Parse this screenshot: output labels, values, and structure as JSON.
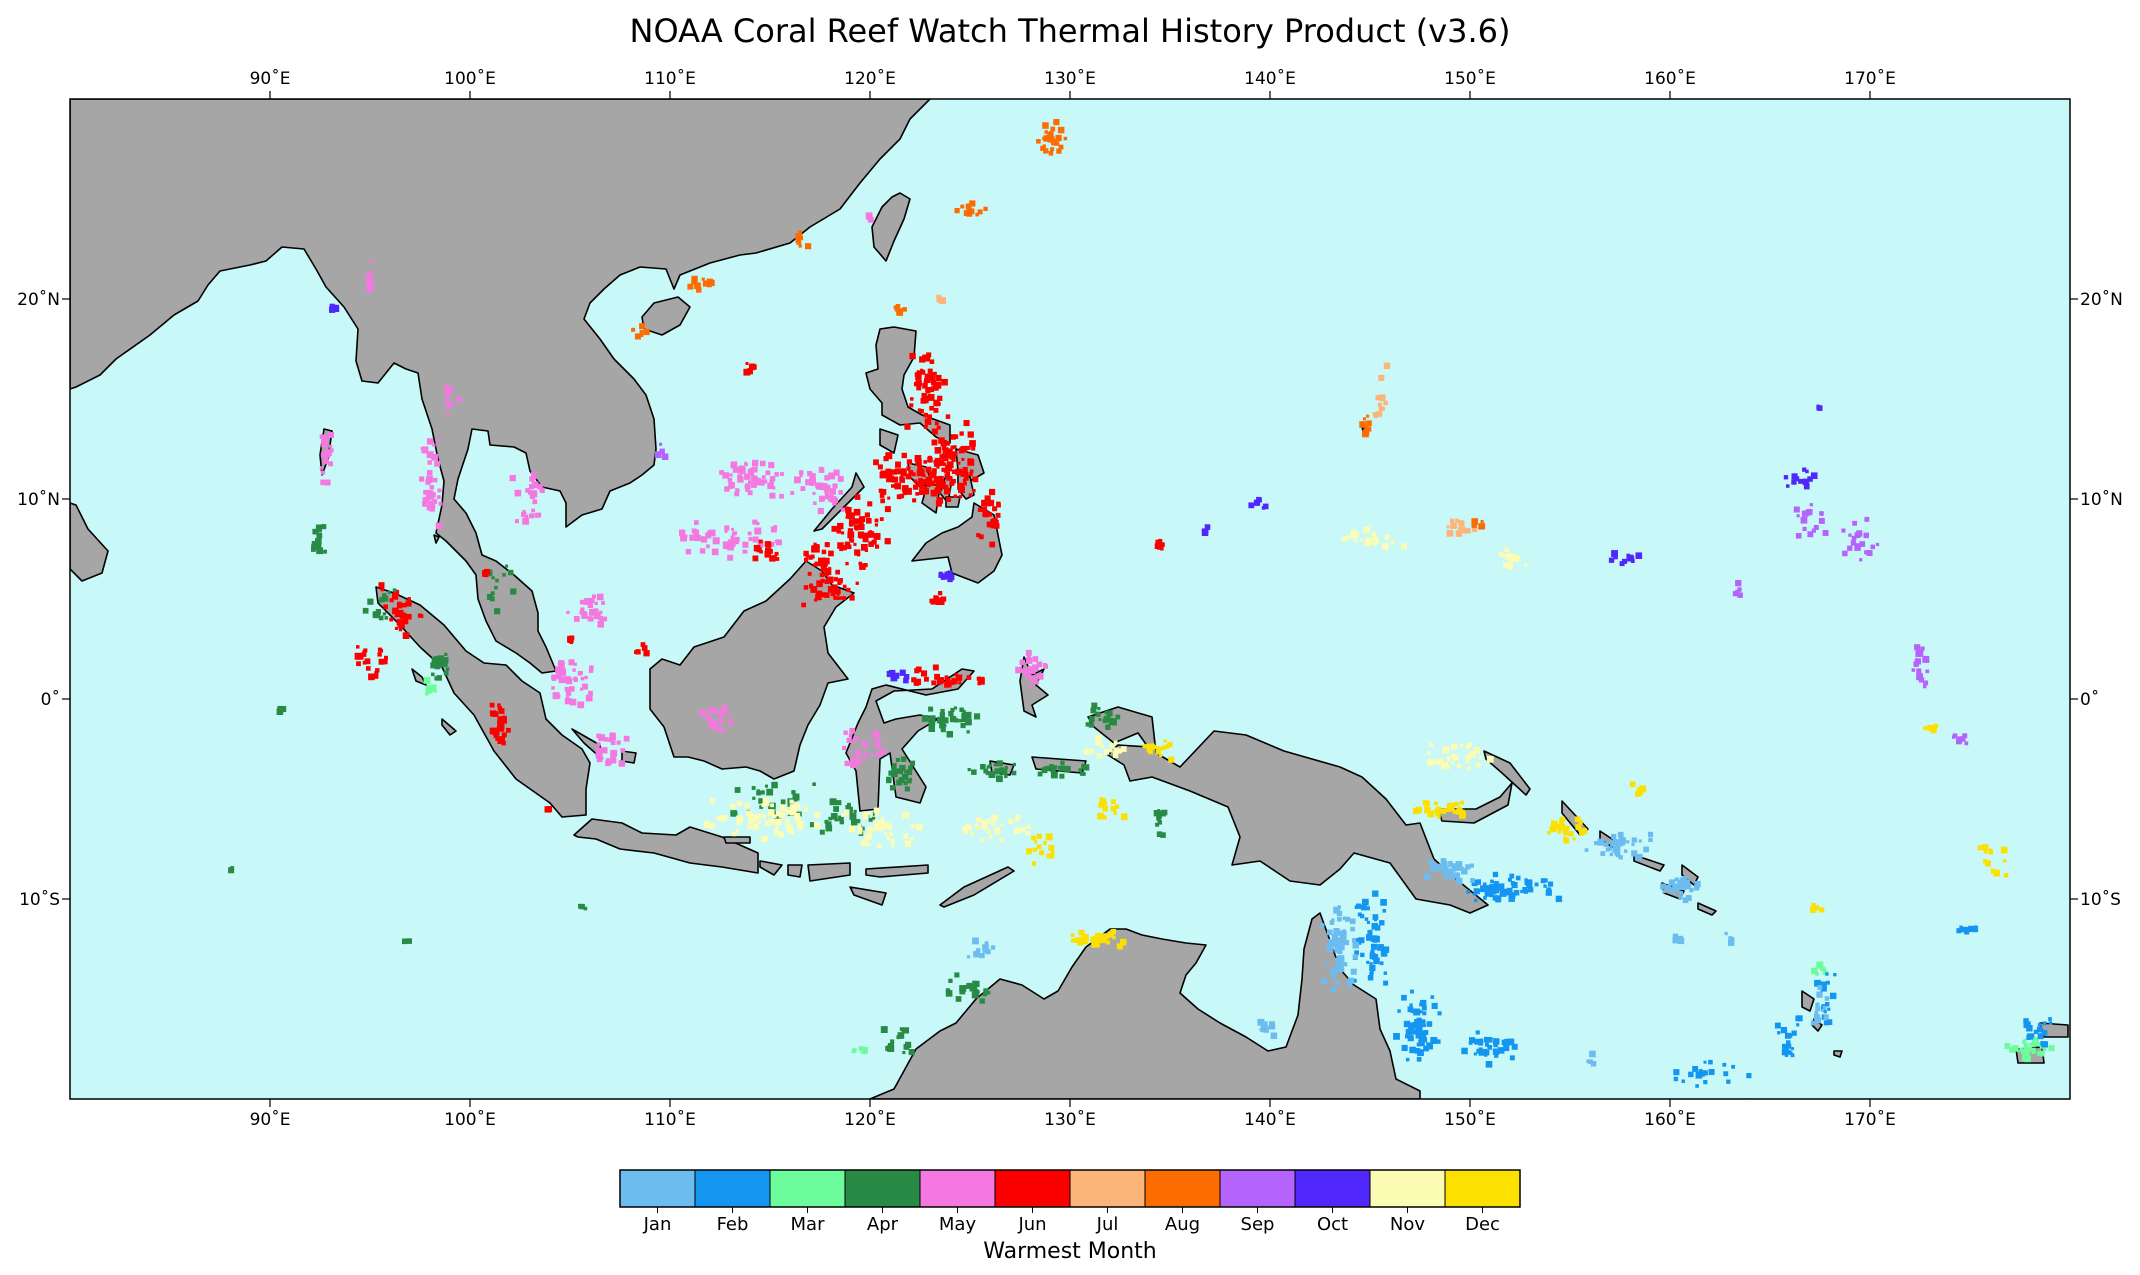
{
  "title": "NOAA Coral Reef Watch Thermal History Product (v3.6)",
  "map": {
    "extent": {
      "lon": [
        80,
        180
      ],
      "lat": [
        -20,
        30
      ]
    },
    "ocean_color": "#c8f8f8",
    "land_color": "#a6a6a6",
    "coast_color": "#000000"
  },
  "axes": {
    "lon_ticks": [
      {
        "value": 90,
        "label": "90˚E"
      },
      {
        "value": 100,
        "label": "100˚E"
      },
      {
        "value": 110,
        "label": "110˚E"
      },
      {
        "value": 120,
        "label": "120˚E"
      },
      {
        "value": 130,
        "label": "130˚E"
      },
      {
        "value": 140,
        "label": "140˚E"
      },
      {
        "value": 150,
        "label": "150˚E"
      },
      {
        "value": 160,
        "label": "160˚E"
      },
      {
        "value": 170,
        "label": "170˚E"
      }
    ],
    "lat_ticks": [
      {
        "value": 20,
        "label": "20˚N"
      },
      {
        "value": 10,
        "label": "10˚N"
      },
      {
        "value": 0,
        "label": "0˚"
      },
      {
        "value": -10,
        "label": "10˚S"
      }
    ]
  },
  "colorbar": {
    "label": "Warmest Month",
    "months": [
      {
        "label": "Jan",
        "color": "#6cbcf0"
      },
      {
        "label": "Feb",
        "color": "#1496f0"
      },
      {
        "label": "Mar",
        "color": "#6cfc9c"
      },
      {
        "label": "Apr",
        "color": "#288a44"
      },
      {
        "label": "May",
        "color": "#f478e0"
      },
      {
        "label": "Jun",
        "color": "#fc0000"
      },
      {
        "label": "Jul",
        "color": "#fcb478"
      },
      {
        "label": "Aug",
        "color": "#fc6c00"
      },
      {
        "label": "Sep",
        "color": "#b464fc"
      },
      {
        "label": "Oct",
        "color": "#5028fc"
      },
      {
        "label": "Nov",
        "color": "#fcfcb4"
      },
      {
        "label": "Dec",
        "color": "#fce000"
      }
    ]
  },
  "reef_clusters": [
    {
      "m": 5,
      "lon": 122.8,
      "lat": 15.5,
      "spread": [
        1.2,
        2.5
      ],
      "count": 60
    },
    {
      "m": 5,
      "lon": 123.5,
      "lat": 11.0,
      "spread": [
        2.0,
        1.5
      ],
      "count": 80
    },
    {
      "m": 5,
      "lon": 119.5,
      "lat": 8.5,
      "spread": [
        1.5,
        2.0
      ],
      "count": 60
    },
    {
      "m": 5,
      "lon": 118.0,
      "lat": 5.5,
      "spread": [
        1.5,
        1.0
      ],
      "count": 40
    },
    {
      "m": 5,
      "lon": 124.0,
      "lat": 1.0,
      "spread": [
        2.0,
        0.6
      ],
      "count": 30
    },
    {
      "m": 5,
      "lon": 126.0,
      "lat": 9.0,
      "spread": [
        0.6,
        1.5
      ],
      "count": 25
    },
    {
      "m": 5,
      "lon": 96.5,
      "lat": 4.5,
      "spread": [
        1.5,
        1.5
      ],
      "count": 30
    },
    {
      "m": 5,
      "lon": 95.0,
      "lat": 2.0,
      "spread": [
        1.0,
        1.0
      ],
      "count": 20
    },
    {
      "m": 4,
      "lon": 114.0,
      "lat": 11.0,
      "spread": [
        2.0,
        1.0
      ],
      "count": 50
    },
    {
      "m": 4,
      "lon": 113.0,
      "lat": 8.0,
      "spread": [
        3.0,
        1.0
      ],
      "count": 50
    },
    {
      "m": 4,
      "lon": 117.5,
      "lat": 10.5,
      "spread": [
        1.5,
        1.5
      ],
      "count": 40
    },
    {
      "m": 4,
      "lon": 92.8,
      "lat": 12.0,
      "spread": [
        0.4,
        1.5
      ],
      "count": 25
    },
    {
      "m": 4,
      "lon": 98.0,
      "lat": 10.5,
      "spread": [
        0.6,
        3.0
      ],
      "count": 35
    },
    {
      "m": 4,
      "lon": 103.0,
      "lat": 10.0,
      "spread": [
        1.0,
        2.0
      ],
      "count": 25
    },
    {
      "m": 4,
      "lon": 106.0,
      "lat": 4.5,
      "spread": [
        1.5,
        1.0
      ],
      "count": 25
    },
    {
      "m": 4,
      "lon": 105.0,
      "lat": 1.0,
      "spread": [
        1.5,
        1.5
      ],
      "count": 40
    },
    {
      "m": 4,
      "lon": 107.0,
      "lat": -2.5,
      "spread": [
        1.0,
        1.0
      ],
      "count": 25
    },
    {
      "m": 4,
      "lon": 112.5,
      "lat": -1.0,
      "spread": [
        1.0,
        0.8
      ],
      "count": 20
    },
    {
      "m": 4,
      "lon": 119.5,
      "lat": -2.5,
      "spread": [
        1.5,
        1.0
      ],
      "count": 25
    },
    {
      "m": 4,
      "lon": 128.0,
      "lat": 1.5,
      "spread": [
        1.0,
        1.0
      ],
      "count": 25
    },
    {
      "m": 4,
      "lon": 120.0,
      "lat": 24.0,
      "spread": [
        0.2,
        0.2
      ],
      "count": 5
    },
    {
      "m": 4,
      "lon": 95.0,
      "lat": 21.0,
      "spread": [
        0.3,
        1.0
      ],
      "count": 12
    },
    {
      "m": 4,
      "lon": 99.0,
      "lat": 15.0,
      "spread": [
        0.5,
        1.0
      ],
      "count": 10
    },
    {
      "m": 3,
      "lon": 92.5,
      "lat": 8.0,
      "spread": [
        0.5,
        1.0
      ],
      "count": 15
    },
    {
      "m": 3,
      "lon": 95.5,
      "lat": 4.8,
      "spread": [
        0.8,
        0.8
      ],
      "count": 15
    },
    {
      "m": 3,
      "lon": 98.5,
      "lat": 1.5,
      "spread": [
        0.5,
        1.0
      ],
      "count": 15
    },
    {
      "m": 3,
      "lon": 101.5,
      "lat": 5.5,
      "spread": [
        0.8,
        1.5
      ],
      "count": 12
    },
    {
      "m": 3,
      "lon": 115.0,
      "lat": -5.0,
      "spread": [
        2.5,
        1.0
      ],
      "count": 30
    },
    {
      "m": 3,
      "lon": 119.0,
      "lat": -6.0,
      "spread": [
        2.0,
        1.0
      ],
      "count": 30
    },
    {
      "m": 3,
      "lon": 121.5,
      "lat": -3.5,
      "spread": [
        1.0,
        1.2
      ],
      "count": 25
    },
    {
      "m": 3,
      "lon": 124.0,
      "lat": -1.0,
      "spread": [
        1.5,
        1.0
      ],
      "count": 30
    },
    {
      "m": 3,
      "lon": 126.0,
      "lat": -3.5,
      "spread": [
        1.5,
        0.5
      ],
      "count": 20
    },
    {
      "m": 3,
      "lon": 129.5,
      "lat": -3.5,
      "spread": [
        1.5,
        0.5
      ],
      "count": 20
    },
    {
      "m": 3,
      "lon": 131.5,
      "lat": -1.0,
      "spread": [
        1.0,
        0.8
      ],
      "count": 20
    },
    {
      "m": 3,
      "lon": 125.0,
      "lat": -14.5,
      "spread": [
        1.5,
        0.8
      ],
      "count": 25
    },
    {
      "m": 3,
      "lon": 121.5,
      "lat": -17.0,
      "spread": [
        1.0,
        1.0
      ],
      "count": 15
    },
    {
      "m": 3,
      "lon": 134.5,
      "lat": -6.0,
      "spread": [
        0.3,
        1.0
      ],
      "count": 10
    },
    {
      "m": 3,
      "lon": 88.0,
      "lat": -8.5,
      "spread": [
        0.2,
        0.2
      ],
      "count": 3
    },
    {
      "m": 3,
      "lon": 96.8,
      "lat": -12.1,
      "spread": [
        0.2,
        0.2
      ],
      "count": 3
    },
    {
      "m": 3,
      "lon": 105.6,
      "lat": -10.4,
      "spread": [
        0.2,
        0.2
      ],
      "count": 3
    },
    {
      "m": 3,
      "lon": 90.5,
      "lat": -0.5,
      "spread": [
        0.2,
        0.3
      ],
      "count": 4
    },
    {
      "m": 2,
      "lon": 98.0,
      "lat": 0.5,
      "spread": [
        0.4,
        0.6
      ],
      "count": 8
    },
    {
      "m": 2,
      "lon": 119.5,
      "lat": -17.5,
      "spread": [
        0.4,
        0.4
      ],
      "count": 5
    },
    {
      "m": 2,
      "lon": 167.5,
      "lat": -13.5,
      "spread": [
        0.4,
        0.6
      ],
      "count": 6
    },
    {
      "m": 2,
      "lon": 178.0,
      "lat": -17.5,
      "spread": [
        1.5,
        0.6
      ],
      "count": 25
    },
    {
      "m": 1,
      "lon": 152.0,
      "lat": -9.5,
      "spread": [
        2.5,
        0.8
      ],
      "count": 60
    },
    {
      "m": 1,
      "lon": 145.0,
      "lat": -12.0,
      "spread": [
        1.0,
        2.5
      ],
      "count": 50
    },
    {
      "m": 1,
      "lon": 147.5,
      "lat": -16.5,
      "spread": [
        1.2,
        2.0
      ],
      "count": 60
    },
    {
      "m": 1,
      "lon": 151.0,
      "lat": -17.5,
      "spread": [
        1.5,
        1.0
      ],
      "count": 30
    },
    {
      "m": 1,
      "lon": 162.0,
      "lat": -18.5,
      "spread": [
        2.0,
        1.0
      ],
      "count": 20
    },
    {
      "m": 1,
      "lon": 166.0,
      "lat": -17.0,
      "spread": [
        0.8,
        1.5
      ],
      "count": 20
    },
    {
      "m": 1,
      "lon": 167.8,
      "lat": -15.0,
      "spread": [
        0.5,
        1.5
      ],
      "count": 15
    },
    {
      "m": 1,
      "lon": 175.0,
      "lat": -11.5,
      "spread": [
        0.8,
        0.2
      ],
      "count": 12
    },
    {
      "m": 1,
      "lon": 178.5,
      "lat": -16.5,
      "spread": [
        1.2,
        0.8
      ],
      "count": 20
    },
    {
      "m": 0,
      "lon": 143.5,
      "lat": -12.5,
      "spread": [
        1.0,
        2.5
      ],
      "count": 60
    },
    {
      "m": 0,
      "lon": 149.0,
      "lat": -8.5,
      "spread": [
        1.5,
        0.8
      ],
      "count": 30
    },
    {
      "m": 0,
      "lon": 157.5,
      "lat": -7.5,
      "spread": [
        1.8,
        0.8
      ],
      "count": 40
    },
    {
      "m": 0,
      "lon": 160.5,
      "lat": -9.5,
      "spread": [
        1.2,
        0.8
      ],
      "count": 25
    },
    {
      "m": 0,
      "lon": 139.8,
      "lat": -16.5,
      "spread": [
        0.5,
        0.5
      ],
      "count": 10
    },
    {
      "m": 0,
      "lon": 125.5,
      "lat": -12.5,
      "spread": [
        0.8,
        0.6
      ],
      "count": 10
    },
    {
      "m": 0,
      "lon": 167.5,
      "lat": -15.0,
      "spread": [
        0.5,
        1.5
      ],
      "count": 12
    },
    {
      "m": 0,
      "lon": 160.5,
      "lat": -12.0,
      "spread": [
        0.3,
        0.3
      ],
      "count": 4
    },
    {
      "m": 0,
      "lon": 163.0,
      "lat": -12.0,
      "spread": [
        0.3,
        0.3
      ],
      "count": 4
    },
    {
      "m": 0,
      "lon": 156.0,
      "lat": -18.0,
      "spread": [
        0.3,
        0.3
      ],
      "count": 4
    },
    {
      "m": 10,
      "lon": 115.0,
      "lat": -6.0,
      "spread": [
        3.5,
        1.2
      ],
      "count": 60
    },
    {
      "m": 10,
      "lon": 120.5,
      "lat": -6.5,
      "spread": [
        2.0,
        1.0
      ],
      "count": 40
    },
    {
      "m": 10,
      "lon": 126.5,
      "lat": -6.5,
      "spread": [
        2.0,
        0.8
      ],
      "count": 30
    },
    {
      "m": 10,
      "lon": 149.5,
      "lat": -3.0,
      "spread": [
        2.0,
        0.8
      ],
      "count": 30
    },
    {
      "m": 10,
      "lon": 145.0,
      "lat": 8.0,
      "spread": [
        2.0,
        0.5
      ],
      "count": 20
    },
    {
      "m": 10,
      "lon": 152.0,
      "lat": 7.0,
      "spread": [
        1.0,
        0.6
      ],
      "count": 15
    },
    {
      "m": 10,
      "lon": 131.5,
      "lat": -2.5,
      "spread": [
        1.5,
        0.6
      ],
      "count": 15
    },
    {
      "m": 11,
      "lon": 148.5,
      "lat": -5.5,
      "spread": [
        1.8,
        0.5
      ],
      "count": 30
    },
    {
      "m": 11,
      "lon": 155.0,
      "lat": -6.5,
      "spread": [
        1.2,
        0.6
      ],
      "count": 25
    },
    {
      "m": 11,
      "lon": 131.0,
      "lat": -12.0,
      "spread": [
        2.0,
        0.5
      ],
      "count": 30
    },
    {
      "m": 11,
      "lon": 132.0,
      "lat": -5.5,
      "spread": [
        0.8,
        0.5
      ],
      "count": 15
    },
    {
      "m": 11,
      "lon": 128.5,
      "lat": -7.5,
      "spread": [
        0.8,
        0.8
      ],
      "count": 15
    },
    {
      "m": 11,
      "lon": 134.5,
      "lat": -2.5,
      "spread": [
        1.0,
        0.6
      ],
      "count": 15
    },
    {
      "m": 11,
      "lon": 176.0,
      "lat": -8.0,
      "spread": [
        1.5,
        1.0
      ],
      "count": 12
    },
    {
      "m": 11,
      "lon": 167.5,
      "lat": -10.5,
      "spread": [
        0.5,
        0.3
      ],
      "count": 6
    },
    {
      "m": 11,
      "lon": 173.0,
      "lat": -1.5,
      "spread": [
        0.5,
        0.3
      ],
      "count": 5
    },
    {
      "m": 11,
      "lon": 158.5,
      "lat": -4.5,
      "spread": [
        0.5,
        0.3
      ],
      "count": 5
    },
    {
      "m": 5,
      "lon": 101.5,
      "lat": -1.5,
      "spread": [
        0.6,
        1.5
      ],
      "count": 25
    },
    {
      "m": 5,
      "lon": 100.8,
      "lat": 6.3,
      "spread": [
        0.3,
        0.3
      ],
      "count": 6
    },
    {
      "m": 5,
      "lon": 104.0,
      "lat": -5.5,
      "spread": [
        0.2,
        0.2
      ],
      "count": 4
    },
    {
      "m": 5,
      "lon": 105.0,
      "lat": 3.0,
      "spread": [
        0.3,
        0.3
      ],
      "count": 5
    },
    {
      "m": 5,
      "lon": 108.5,
      "lat": 2.5,
      "spread": [
        0.4,
        0.4
      ],
      "count": 6
    },
    {
      "m": 5,
      "lon": 115.0,
      "lat": 7.5,
      "spread": [
        1.0,
        0.8
      ],
      "count": 15
    },
    {
      "m": 5,
      "lon": 117.5,
      "lat": 7.0,
      "spread": [
        0.8,
        1.0
      ],
      "count": 30
    },
    {
      "m": 5,
      "lon": 121.5,
      "lat": 11.0,
      "spread": [
        1.5,
        1.5
      ],
      "count": 45
    },
    {
      "m": 5,
      "lon": 124.0,
      "lat": 12.5,
      "spread": [
        1.5,
        1.5
      ],
      "count": 40
    },
    {
      "m": 5,
      "lon": 134.5,
      "lat": 7.8,
      "spread": [
        0.2,
        0.5
      ],
      "count": 8
    },
    {
      "m": 5,
      "lon": 114.0,
      "lat": 16.5,
      "spread": [
        0.4,
        0.3
      ],
      "count": 8
    },
    {
      "m": 5,
      "lon": 123.5,
      "lat": 5.0,
      "spread": [
        0.5,
        0.4
      ],
      "count": 10
    },
    {
      "m": 6,
      "lon": 145.5,
      "lat": 15.0,
      "spread": [
        0.5,
        2.0
      ],
      "count": 12
    },
    {
      "m": 6,
      "lon": 149.5,
      "lat": 8.5,
      "spread": [
        0.8,
        0.5
      ],
      "count": 15
    },
    {
      "m": 6,
      "lon": 123.5,
      "lat": 20.0,
      "spread": [
        0.3,
        0.5
      ],
      "count": 5
    },
    {
      "m": 7,
      "lon": 144.8,
      "lat": 13.5,
      "spread": [
        0.3,
        0.8
      ],
      "count": 12
    },
    {
      "m": 7,
      "lon": 129.0,
      "lat": 28.0,
      "spread": [
        1.0,
        1.0
      ],
      "count": 25
    },
    {
      "m": 7,
      "lon": 125.0,
      "lat": 24.5,
      "spread": [
        1.0,
        0.4
      ],
      "count": 15
    },
    {
      "m": 7,
      "lon": 116.5,
      "lat": 23.0,
      "spread": [
        0.6,
        0.4
      ],
      "count": 8
    },
    {
      "m": 7,
      "lon": 111.5,
      "lat": 20.8,
      "spread": [
        0.8,
        0.4
      ],
      "count": 10
    },
    {
      "m": 7,
      "lon": 108.5,
      "lat": 18.5,
      "spread": [
        0.4,
        0.4
      ],
      "count": 6
    },
    {
      "m": 7,
      "lon": 121.5,
      "lat": 19.5,
      "spread": [
        0.3,
        0.3
      ],
      "count": 6
    },
    {
      "m": 7,
      "lon": 150.5,
      "lat": 8.8,
      "spread": [
        0.5,
        0.3
      ],
      "count": 5
    },
    {
      "m": 8,
      "lon": 167.0,
      "lat": 9.0,
      "spread": [
        1.0,
        1.0
      ],
      "count": 15
    },
    {
      "m": 8,
      "lon": 169.5,
      "lat": 8.0,
      "spread": [
        1.0,
        1.5
      ],
      "count": 20
    },
    {
      "m": 8,
      "lon": 172.5,
      "lat": 1.5,
      "spread": [
        0.5,
        1.5
      ],
      "count": 15
    },
    {
      "m": 8,
      "lon": 174.5,
      "lat": -2.0,
      "spread": [
        0.5,
        0.5
      ],
      "count": 8
    },
    {
      "m": 8,
      "lon": 163.5,
      "lat": 5.5,
      "spread": [
        0.5,
        0.5
      ],
      "count": 5
    },
    {
      "m": 8,
      "lon": 109.5,
      "lat": 12.5,
      "spread": [
        0.3,
        0.5
      ],
      "count": 5
    },
    {
      "m": 9,
      "lon": 139.5,
      "lat": 9.8,
      "spread": [
        0.6,
        0.3
      ],
      "count": 8
    },
    {
      "m": 9,
      "lon": 157.5,
      "lat": 7.0,
      "spread": [
        1.2,
        0.4
      ],
      "count": 10
    },
    {
      "m": 9,
      "lon": 166.5,
      "lat": 11.0,
      "spread": [
        0.8,
        0.6
      ],
      "count": 12
    },
    {
      "m": 9,
      "lon": 124.0,
      "lat": 6.2,
      "spread": [
        0.8,
        0.3
      ],
      "count": 10
    },
    {
      "m": 9,
      "lon": 121.5,
      "lat": 1.2,
      "spread": [
        0.8,
        0.3
      ],
      "count": 8
    },
    {
      "m": 9,
      "lon": 136.8,
      "lat": 8.5,
      "spread": [
        0.3,
        0.2
      ],
      "count": 4
    },
    {
      "m": 9,
      "lon": 167.5,
      "lat": 14.5,
      "spread": [
        0.2,
        0.3
      ],
      "count": 4
    },
    {
      "m": 9,
      "lon": 93.2,
      "lat": 19.5,
      "spread": [
        0.3,
        0.3
      ],
      "count": 5
    }
  ]
}
